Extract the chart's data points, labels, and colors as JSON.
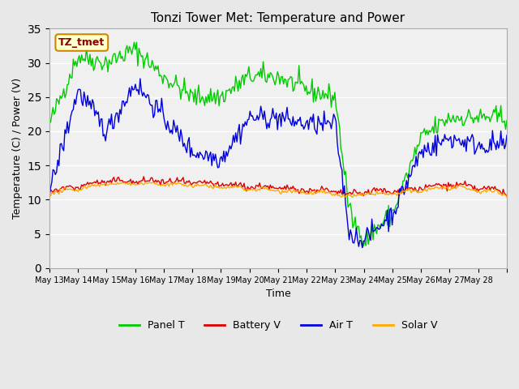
{
  "title": "Tonzi Tower Met: Temperature and Power",
  "xlabel": "Time",
  "ylabel": "Temperature (C) / Power (V)",
  "ylim": [
    0,
    35
  ],
  "yticks": [
    0,
    5,
    10,
    15,
    20,
    25,
    30,
    35
  ],
  "bg_color": "#e8e8e8",
  "plot_bg_color": "#f0f0f0",
  "annotation_text": "TZ_tmet",
  "annotation_fg": "#8B0000",
  "annotation_bg": "#ffffcc",
  "annotation_border": "#cc8800",
  "legend_entries": [
    "Panel T",
    "Battery V",
    "Air T",
    "Solar V"
  ],
  "legend_colors": [
    "#00cc00",
    "#dd0000",
    "#0000dd",
    "#ffaa00"
  ],
  "line_colors": {
    "panel_t": "#00cc00",
    "battery_v": "#dd0000",
    "air_t": "#0000dd",
    "solar_v": "#ffaa00"
  },
  "x_tick_labels": [
    "May 13",
    "May 14",
    "May 15",
    "May 16",
    "May 17",
    "May 18",
    "May 19",
    "May 20",
    "May 21",
    "May 22",
    "May 23",
    "May 24",
    "May 25",
    "May 26",
    "May 27",
    "May 28"
  ],
  "num_points_per_day": 24,
  "n_days": 16
}
